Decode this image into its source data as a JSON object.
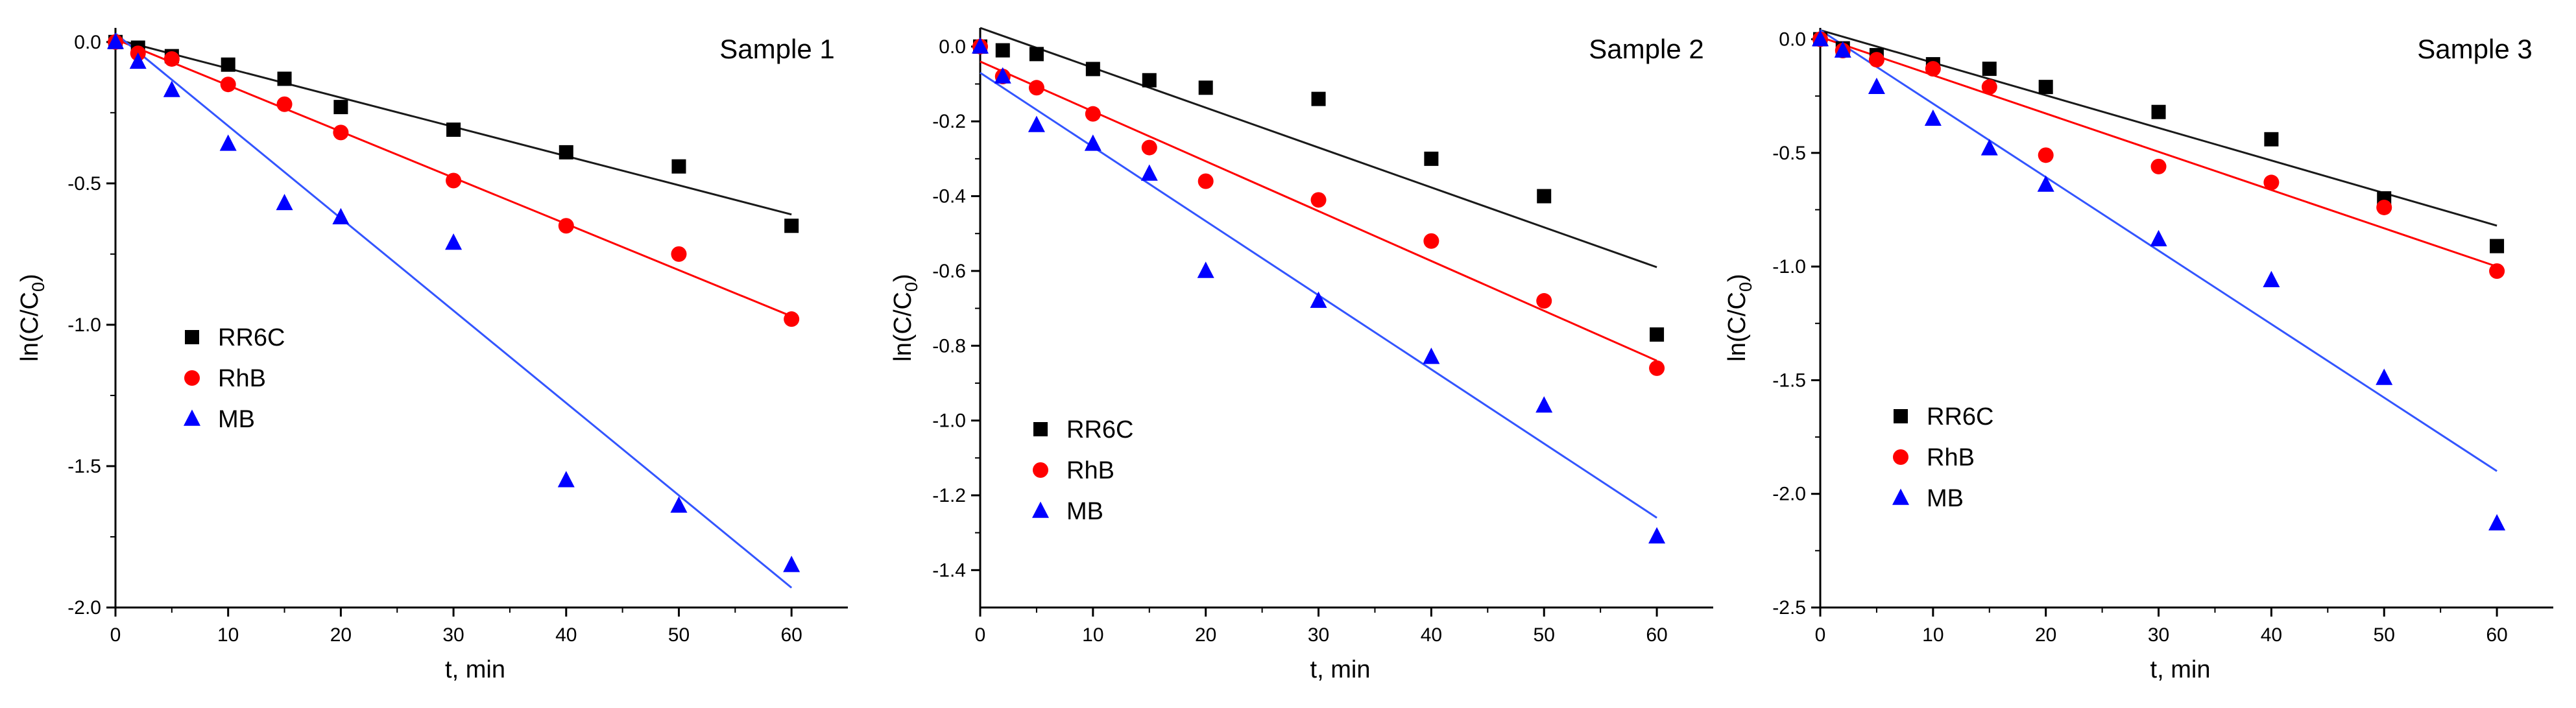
{
  "figure": {
    "colors": {
      "RR6C": "#000000",
      "RhB": "#ff0000",
      "MB": "#0000ff",
      "fit_RR6C": "#1a1a1a",
      "fit_RhB": "#ff0000",
      "fit_MB": "#3355ff"
    },
    "markers": {
      "RR6C": "square",
      "RhB": "circle",
      "MB": "triangle"
    }
  },
  "chart_data": [
    {
      "type": "scatter",
      "title": "Sample 1",
      "xlabel": "t, min",
      "ylabel": {
        "main": "ln(C/C",
        "sub": "0",
        "close": ")"
      },
      "xlim": [
        0,
        65
      ],
      "ylim": [
        -2.0,
        0.05
      ],
      "xticks": [
        0,
        10,
        20,
        30,
        40,
        50,
        60
      ],
      "yticks": [
        -2.0,
        -1.5,
        -1.0,
        -0.5,
        0.0
      ],
      "yticks_text": [
        "-2.0",
        "-1.5",
        "-1.0",
        "-0.5",
        "0.0"
      ],
      "legend_location": "left-middle",
      "series": [
        {
          "name": "RR6C",
          "x": [
            0,
            2,
            5,
            10,
            15,
            20,
            30,
            40,
            50,
            60
          ],
          "y": [
            0,
            -0.02,
            -0.05,
            -0.08,
            -0.13,
            -0.23,
            -0.31,
            -0.39,
            -0.44,
            -0.65
          ],
          "fit": [
            [
              0,
              0.01
            ],
            [
              60,
              -0.61
            ]
          ]
        },
        {
          "name": "RhB",
          "x": [
            0,
            2,
            5,
            10,
            15,
            20,
            30,
            40,
            50,
            60
          ],
          "y": [
            0,
            -0.04,
            -0.06,
            -0.15,
            -0.22,
            -0.32,
            -0.49,
            -0.65,
            -0.75,
            -0.98
          ],
          "fit": [
            [
              0,
              0.01
            ],
            [
              60,
              -0.97
            ]
          ]
        },
        {
          "name": "MB",
          "x": [
            0,
            2,
            5,
            10,
            15,
            20,
            30,
            40,
            50,
            60
          ],
          "y": [
            0,
            -0.07,
            -0.17,
            -0.36,
            -0.57,
            -0.62,
            -0.71,
            -1.55,
            -1.64,
            -1.85
          ],
          "fit": [
            [
              0,
              0.03
            ],
            [
              60,
              -1.93
            ]
          ]
        }
      ]
    },
    {
      "type": "scatter",
      "title": "Sample 2",
      "xlabel": "t, min",
      "ylabel": {
        "main": "ln(C/C",
        "sub": "0",
        "close": ")"
      },
      "xlim": [
        0,
        65
      ],
      "ylim": [
        -1.5,
        0.05
      ],
      "xticks": [
        0,
        10,
        20,
        30,
        40,
        50,
        60
      ],
      "yticks": [
        -1.4,
        -1.2,
        -1.0,
        -0.8,
        -0.6,
        -0.4,
        -0.2,
        0.0
      ],
      "yticks_text": [
        "-1.4",
        "-1.2",
        "-1.0",
        "-0.8",
        "-0.6",
        "-0.4",
        "-0.2",
        "0.0"
      ],
      "legend_location": "bottom-left",
      "series": [
        {
          "name": "RR6C",
          "x": [
            0,
            2,
            5,
            10,
            15,
            20,
            30,
            40,
            50,
            60
          ],
          "y": [
            0,
            -0.01,
            -0.02,
            -0.06,
            -0.09,
            -0.11,
            -0.14,
            -0.3,
            -0.4,
            -0.77
          ],
          "fit": [
            [
              0,
              0.05
            ],
            [
              60,
              -0.59
            ]
          ]
        },
        {
          "name": "RhB",
          "x": [
            0,
            2,
            5,
            10,
            15,
            20,
            30,
            40,
            50,
            60
          ],
          "y": [
            0,
            -0.08,
            -0.11,
            -0.18,
            -0.27,
            -0.36,
            -0.41,
            -0.52,
            -0.68,
            -0.86
          ],
          "fit": [
            [
              0,
              -0.04
            ],
            [
              60,
              -0.84
            ]
          ]
        },
        {
          "name": "MB",
          "x": [
            0,
            2,
            5,
            10,
            15,
            20,
            30,
            40,
            50,
            60
          ],
          "y": [
            0,
            -0.08,
            -0.21,
            -0.26,
            -0.34,
            -0.6,
            -0.68,
            -0.83,
            -0.96,
            -1.31
          ],
          "fit": [
            [
              0,
              -0.07
            ],
            [
              60,
              -1.26
            ]
          ]
        }
      ]
    },
    {
      "type": "scatter",
      "title": "Sample 3",
      "xlabel": "t, min",
      "ylabel": {
        "main": "ln(C/C",
        "sub": "0",
        "close": ")"
      },
      "xlim": [
        0,
        65
      ],
      "ylim": [
        -2.5,
        0.05
      ],
      "xticks": [
        0,
        10,
        20,
        30,
        40,
        50,
        60
      ],
      "yticks": [
        -2.5,
        -2.0,
        -1.5,
        -1.0,
        -0.5,
        0.0
      ],
      "yticks_text": [
        "-2.5",
        "-2.0",
        "-1.5",
        "-1.0",
        "-0.5",
        "0.0"
      ],
      "legend_location": "bottom-left",
      "series": [
        {
          "name": "RR6C",
          "x": [
            0,
            2,
            5,
            10,
            15,
            20,
            30,
            40,
            50,
            60
          ],
          "y": [
            0,
            -0.04,
            -0.07,
            -0.11,
            -0.13,
            -0.21,
            -0.32,
            -0.44,
            -0.7,
            -0.91
          ],
          "fit": [
            [
              0,
              0.04
            ],
            [
              60,
              -0.82
            ]
          ]
        },
        {
          "name": "RhB",
          "x": [
            0,
            2,
            5,
            10,
            15,
            20,
            30,
            40,
            50,
            60
          ],
          "y": [
            0,
            -0.05,
            -0.09,
            -0.13,
            -0.21,
            -0.51,
            -0.56,
            -0.63,
            -0.74,
            -1.02
          ],
          "fit": [
            [
              0,
              0.01
            ],
            [
              60,
              -1.0
            ]
          ]
        },
        {
          "name": "MB",
          "x": [
            0,
            2,
            5,
            10,
            15,
            20,
            30,
            40,
            50,
            60
          ],
          "y": [
            0,
            -0.05,
            -0.21,
            -0.35,
            -0.48,
            -0.64,
            -0.88,
            -1.06,
            -1.49,
            -2.13
          ],
          "fit": [
            [
              0,
              0.04
            ],
            [
              60,
              -1.9
            ]
          ]
        }
      ]
    }
  ]
}
